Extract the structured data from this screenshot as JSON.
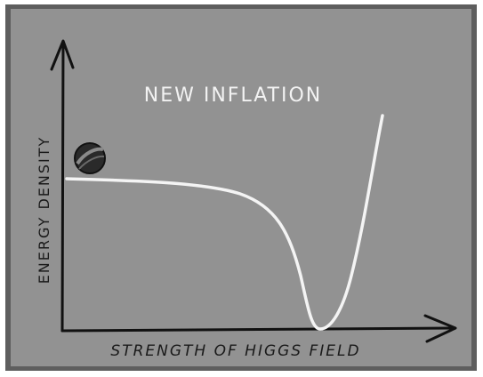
{
  "title": "NEW INFLATION",
  "y_axis_label": "ENERGY DENSITY",
  "x_axis_label": "STRENGTH OF HIGGS FIELD"
}
